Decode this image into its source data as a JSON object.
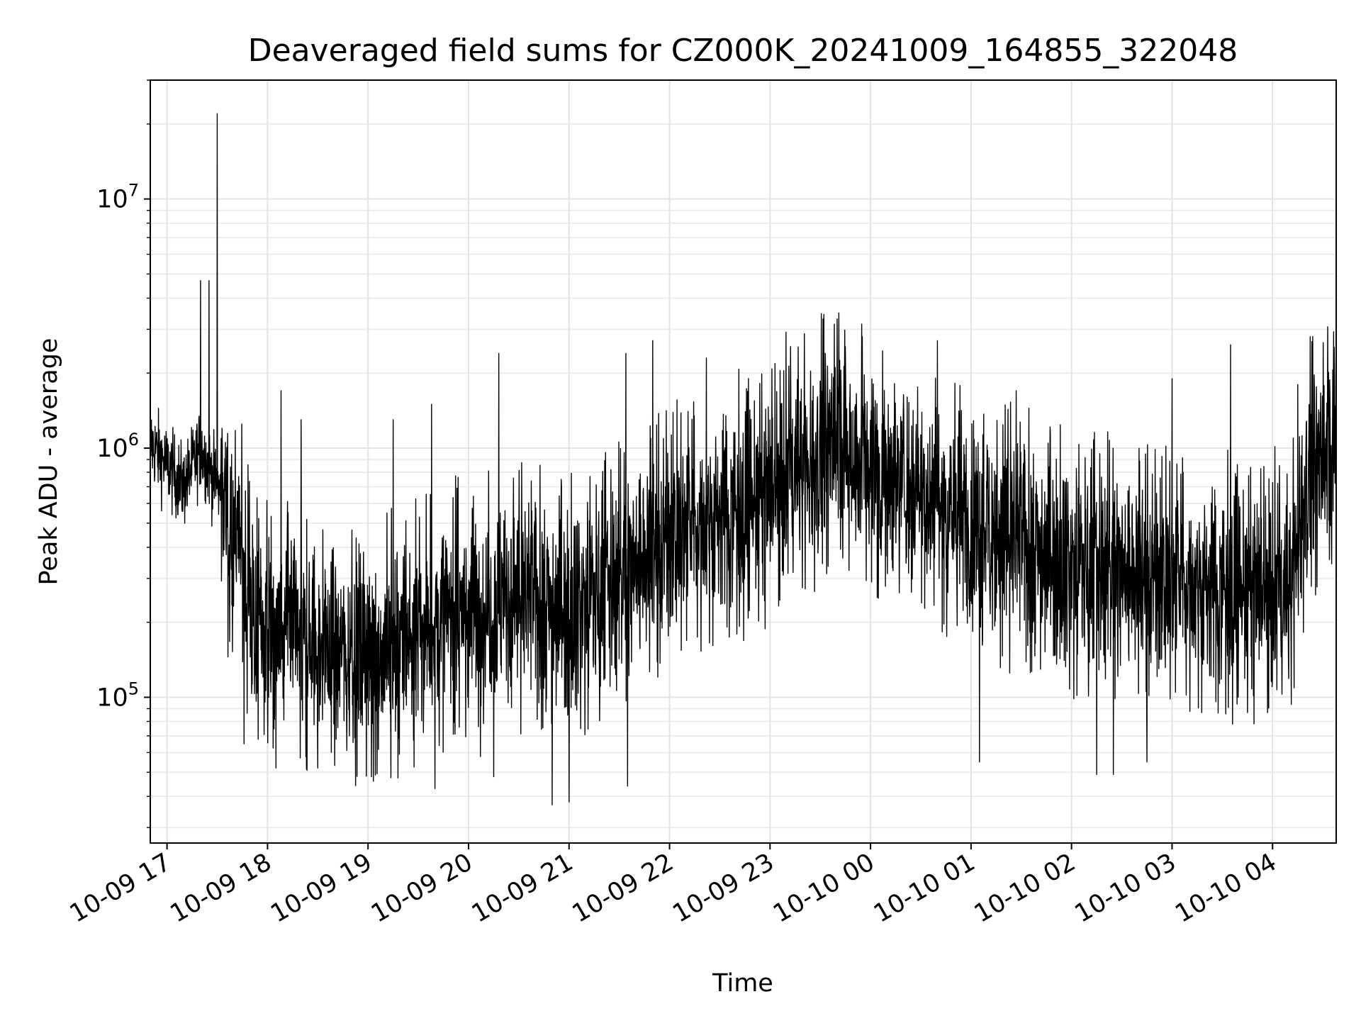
{
  "chart_data": {
    "type": "line",
    "title": "Deaveraged field sums for CZ000K_20241009_164855_322048",
    "xlabel": "Time",
    "ylabel": "Peak ADU - average",
    "yscale": "log",
    "grid": true,
    "line_color": "#000000",
    "xlim": [
      "2024-10-09 16:50",
      "2024-10-10 04:38"
    ],
    "ylim": [
      26000,
      30000000
    ],
    "x_tick_labels": [
      "10-09 17",
      "10-09 18",
      "10-09 19",
      "10-09 20",
      "10-09 21",
      "10-09 22",
      "10-09 23",
      "10-10 00",
      "10-10 01",
      "10-10 02",
      "10-10 03",
      "10-10 04"
    ],
    "y_ticks": [
      {
        "value": 100000,
        "base": "10",
        "exp": "5"
      },
      {
        "value": 1000000,
        "base": "10",
        "exp": "6"
      },
      {
        "value": 10000000,
        "base": "10",
        "exp": "7"
      }
    ],
    "series": [
      {
        "trend": [
          {
            "x": "2024-10-09 16:50",
            "y": 1050000
          },
          {
            "x": "2024-10-09 17:00",
            "y": 850000
          },
          {
            "x": "2024-10-09 17:10",
            "y": 700000
          },
          {
            "x": "2024-10-09 17:20",
            "y": 1000000
          },
          {
            "x": "2024-10-09 17:30",
            "y": 700000
          },
          {
            "x": "2024-10-09 17:45",
            "y": 400000
          },
          {
            "x": "2024-10-09 17:50",
            "y": 200000
          },
          {
            "x": "2024-10-09 18:30",
            "y": 160000
          },
          {
            "x": "2024-10-09 19:00",
            "y": 150000
          },
          {
            "x": "2024-10-09 19:30",
            "y": 180000
          },
          {
            "x": "2024-10-09 20:00",
            "y": 230000
          },
          {
            "x": "2024-10-09 20:30",
            "y": 250000
          },
          {
            "x": "2024-10-09 21:00",
            "y": 230000
          },
          {
            "x": "2024-10-09 21:30",
            "y": 300000
          },
          {
            "x": "2024-10-09 22:00",
            "y": 450000
          },
          {
            "x": "2024-10-09 22:30",
            "y": 550000
          },
          {
            "x": "2024-10-09 23:00",
            "y": 650000
          },
          {
            "x": "2024-10-09 23:40",
            "y": 1100000
          },
          {
            "x": "2024-10-10 00:00",
            "y": 850000
          },
          {
            "x": "2024-10-10 00:30",
            "y": 700000
          },
          {
            "x": "2024-10-10 01:00",
            "y": 500000
          },
          {
            "x": "2024-10-10 01:30",
            "y": 420000
          },
          {
            "x": "2024-10-10 02:00",
            "y": 350000
          },
          {
            "x": "2024-10-10 02:30",
            "y": 320000
          },
          {
            "x": "2024-10-10 03:00",
            "y": 300000
          },
          {
            "x": "2024-10-10 03:30",
            "y": 280000
          },
          {
            "x": "2024-10-10 04:10",
            "y": 250000
          },
          {
            "x": "2024-10-10 04:20",
            "y": 750000
          },
          {
            "x": "2024-10-10 04:38",
            "y": 1050000
          }
        ],
        "spikes": [
          {
            "x": "2024-10-09 17:20",
            "y": 4700000
          },
          {
            "x": "2024-10-09 17:25",
            "y": 4700000
          },
          {
            "x": "2024-10-09 17:30",
            "y": 22000000
          },
          {
            "x": "2024-10-09 18:08",
            "y": 1700000
          },
          {
            "x": "2024-10-09 18:20",
            "y": 1300000
          },
          {
            "x": "2024-10-09 19:15",
            "y": 1300000
          },
          {
            "x": "2024-10-09 19:38",
            "y": 1500000
          },
          {
            "x": "2024-10-09 20:18",
            "y": 2400000
          },
          {
            "x": "2024-10-09 21:34",
            "y": 2400000
          },
          {
            "x": "2024-10-09 21:50",
            "y": 2700000
          },
          {
            "x": "2024-10-09 22:22",
            "y": 2300000
          },
          {
            "x": "2024-10-09 23:40",
            "y": 3300000
          },
          {
            "x": "2024-10-09 23:55",
            "y": 2800000
          },
          {
            "x": "2024-10-10 00:40",
            "y": 2700000
          },
          {
            "x": "2024-10-10 01:27",
            "y": 1700000
          },
          {
            "x": "2024-10-10 03:00",
            "y": 1900000
          },
          {
            "x": "2024-10-10 03:35",
            "y": 2600000
          },
          {
            "x": "2024-10-10 04:15",
            "y": 1800000
          }
        ],
        "dips": [
          {
            "x": "2024-10-09 17:46",
            "y": 65000
          },
          {
            "x": "2024-10-09 18:05",
            "y": 52000
          },
          {
            "x": "2024-10-09 18:30",
            "y": 52000
          },
          {
            "x": "2024-10-09 19:02",
            "y": 48000
          },
          {
            "x": "2024-10-09 19:40",
            "y": 43000
          },
          {
            "x": "2024-10-09 20:15",
            "y": 48000
          },
          {
            "x": "2024-10-09 20:50",
            "y": 37000
          },
          {
            "x": "2024-10-09 21:00",
            "y": 38000
          },
          {
            "x": "2024-10-09 21:35",
            "y": 44000
          },
          {
            "x": "2024-10-10 01:05",
            "y": 55000
          },
          {
            "x": "2024-10-10 02:15",
            "y": 49000
          },
          {
            "x": "2024-10-10 02:25",
            "y": 49000
          },
          {
            "x": "2024-10-10 02:45",
            "y": 55000
          }
        ]
      }
    ]
  }
}
